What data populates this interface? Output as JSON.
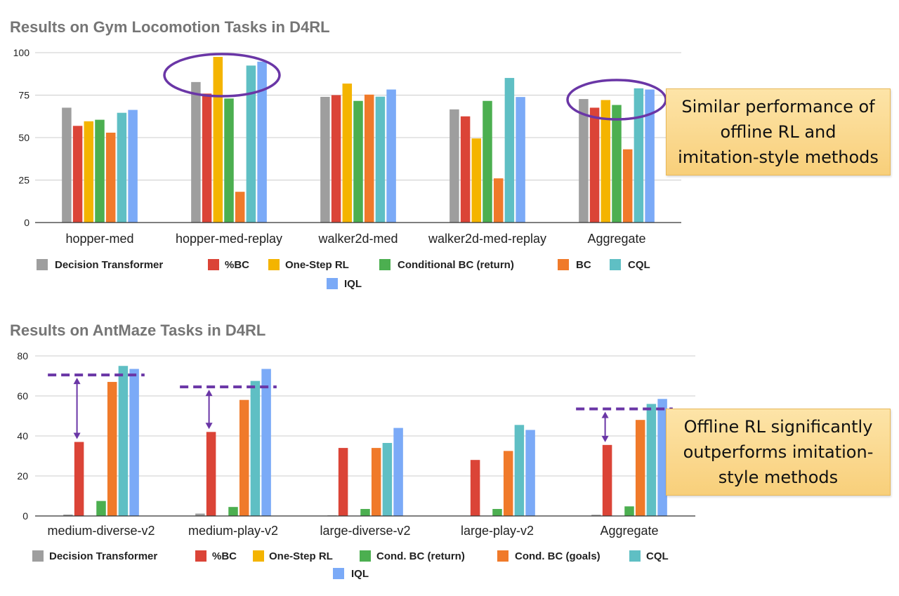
{
  "chart_data": [
    {
      "type": "bar",
      "title": "Results on Gym Locomotion Tasks in D4RL",
      "categories": [
        "hopper-med",
        "hopper-med-replay",
        "walker2d-med",
        "walker2d-med-replay",
        "Aggregate"
      ],
      "ylim": [
        0,
        100
      ],
      "yticks": [
        0,
        25,
        50,
        75,
        100
      ],
      "grid": true,
      "legend_position": "bottom",
      "series": [
        {
          "name": "Decision Transformer",
          "color": "#9e9e9e",
          "values": [
            67.6,
            82.7,
            74.0,
            66.6,
            72.7
          ]
        },
        {
          "name": "%BC",
          "color": "#db4437",
          "values": [
            56.9,
            75.9,
            75.0,
            62.5,
            67.6
          ]
        },
        {
          "name": "One-Step RL",
          "color": "#f4b400",
          "values": [
            59.6,
            97.5,
            81.8,
            49.5,
            72.1
          ]
        },
        {
          "name": "Conditional BC (return)",
          "color": "#4caf50",
          "values": [
            60.5,
            73.0,
            71.6,
            71.6,
            69.2
          ]
        },
        {
          "name": "BC",
          "color": "#f07a2a",
          "values": [
            52.9,
            18.1,
            75.3,
            26.0,
            43.1
          ]
        },
        {
          "name": "CQL",
          "color": "#5fbfc4",
          "values": [
            64.6,
            92.4,
            74.1,
            85.1,
            79.0
          ]
        },
        {
          "name": "IQL",
          "color": "#7baaf7",
          "values": [
            66.3,
            94.7,
            78.3,
            73.9,
            78.3
          ]
        }
      ],
      "annotations": [
        {
          "type": "ellipse",
          "category": "hopper-med-replay"
        },
        {
          "type": "ellipse",
          "category": "Aggregate"
        }
      ]
    },
    {
      "type": "bar",
      "title": "Results on AntMaze Tasks in D4RL",
      "categories": [
        "medium-diverse-v2",
        "medium-play-v2",
        "large-diverse-v2",
        "large-play-v2",
        "Aggregate"
      ],
      "ylim": [
        0,
        80
      ],
      "yticks": [
        0,
        20,
        40,
        60,
        80
      ],
      "grid": true,
      "legend_position": "bottom",
      "series": [
        {
          "name": "Decision Transformer",
          "color": "#9e9e9e",
          "values": [
            0.7,
            1.2,
            0.3,
            0.0,
            0.6
          ]
        },
        {
          "name": "%BC",
          "color": "#db4437",
          "values": [
            37,
            42,
            34,
            28,
            35.5
          ]
        },
        {
          "name": "One-Step RL",
          "color": "#f4b400",
          "values": [
            0,
            0,
            0,
            0,
            0
          ]
        },
        {
          "name": "Cond. BC (return)",
          "color": "#4caf50",
          "values": [
            7.5,
            4.5,
            3.5,
            3.5,
            4.8
          ]
        },
        {
          "name": "Cond. BC (goals)",
          "color": "#f07a2a",
          "values": [
            67,
            58,
            34,
            32.5,
            48
          ]
        },
        {
          "name": "CQL",
          "color": "#5fbfc4",
          "values": [
            75,
            67.5,
            36.5,
            45.5,
            56
          ]
        },
        {
          "name": "IQL",
          "color": "#7baaf7",
          "values": [
            73.5,
            73.5,
            44,
            43,
            58.5
          ]
        }
      ],
      "annotations": [
        {
          "type": "dashed-line-with-arrow",
          "category": "medium-diverse-v2",
          "level": 70.5,
          "from": 37
        },
        {
          "type": "dashed-line-with-arrow",
          "category": "medium-play-v2",
          "level": 64.5,
          "from": 42
        },
        {
          "type": "dashed-line-with-arrow",
          "category": "Aggregate",
          "level": 53.5,
          "from": 35.5
        }
      ]
    }
  ],
  "callouts": {
    "top": "Similar performance of\noffline RL and\nimitation-style methods",
    "bottom": "Offline RL significantly\noutperforms imitation-\nstyle methods"
  },
  "colors": {
    "annotation_purple": "#6a36a6",
    "grid": "#cccccc",
    "axis": "#333333",
    "title": "#757575"
  }
}
